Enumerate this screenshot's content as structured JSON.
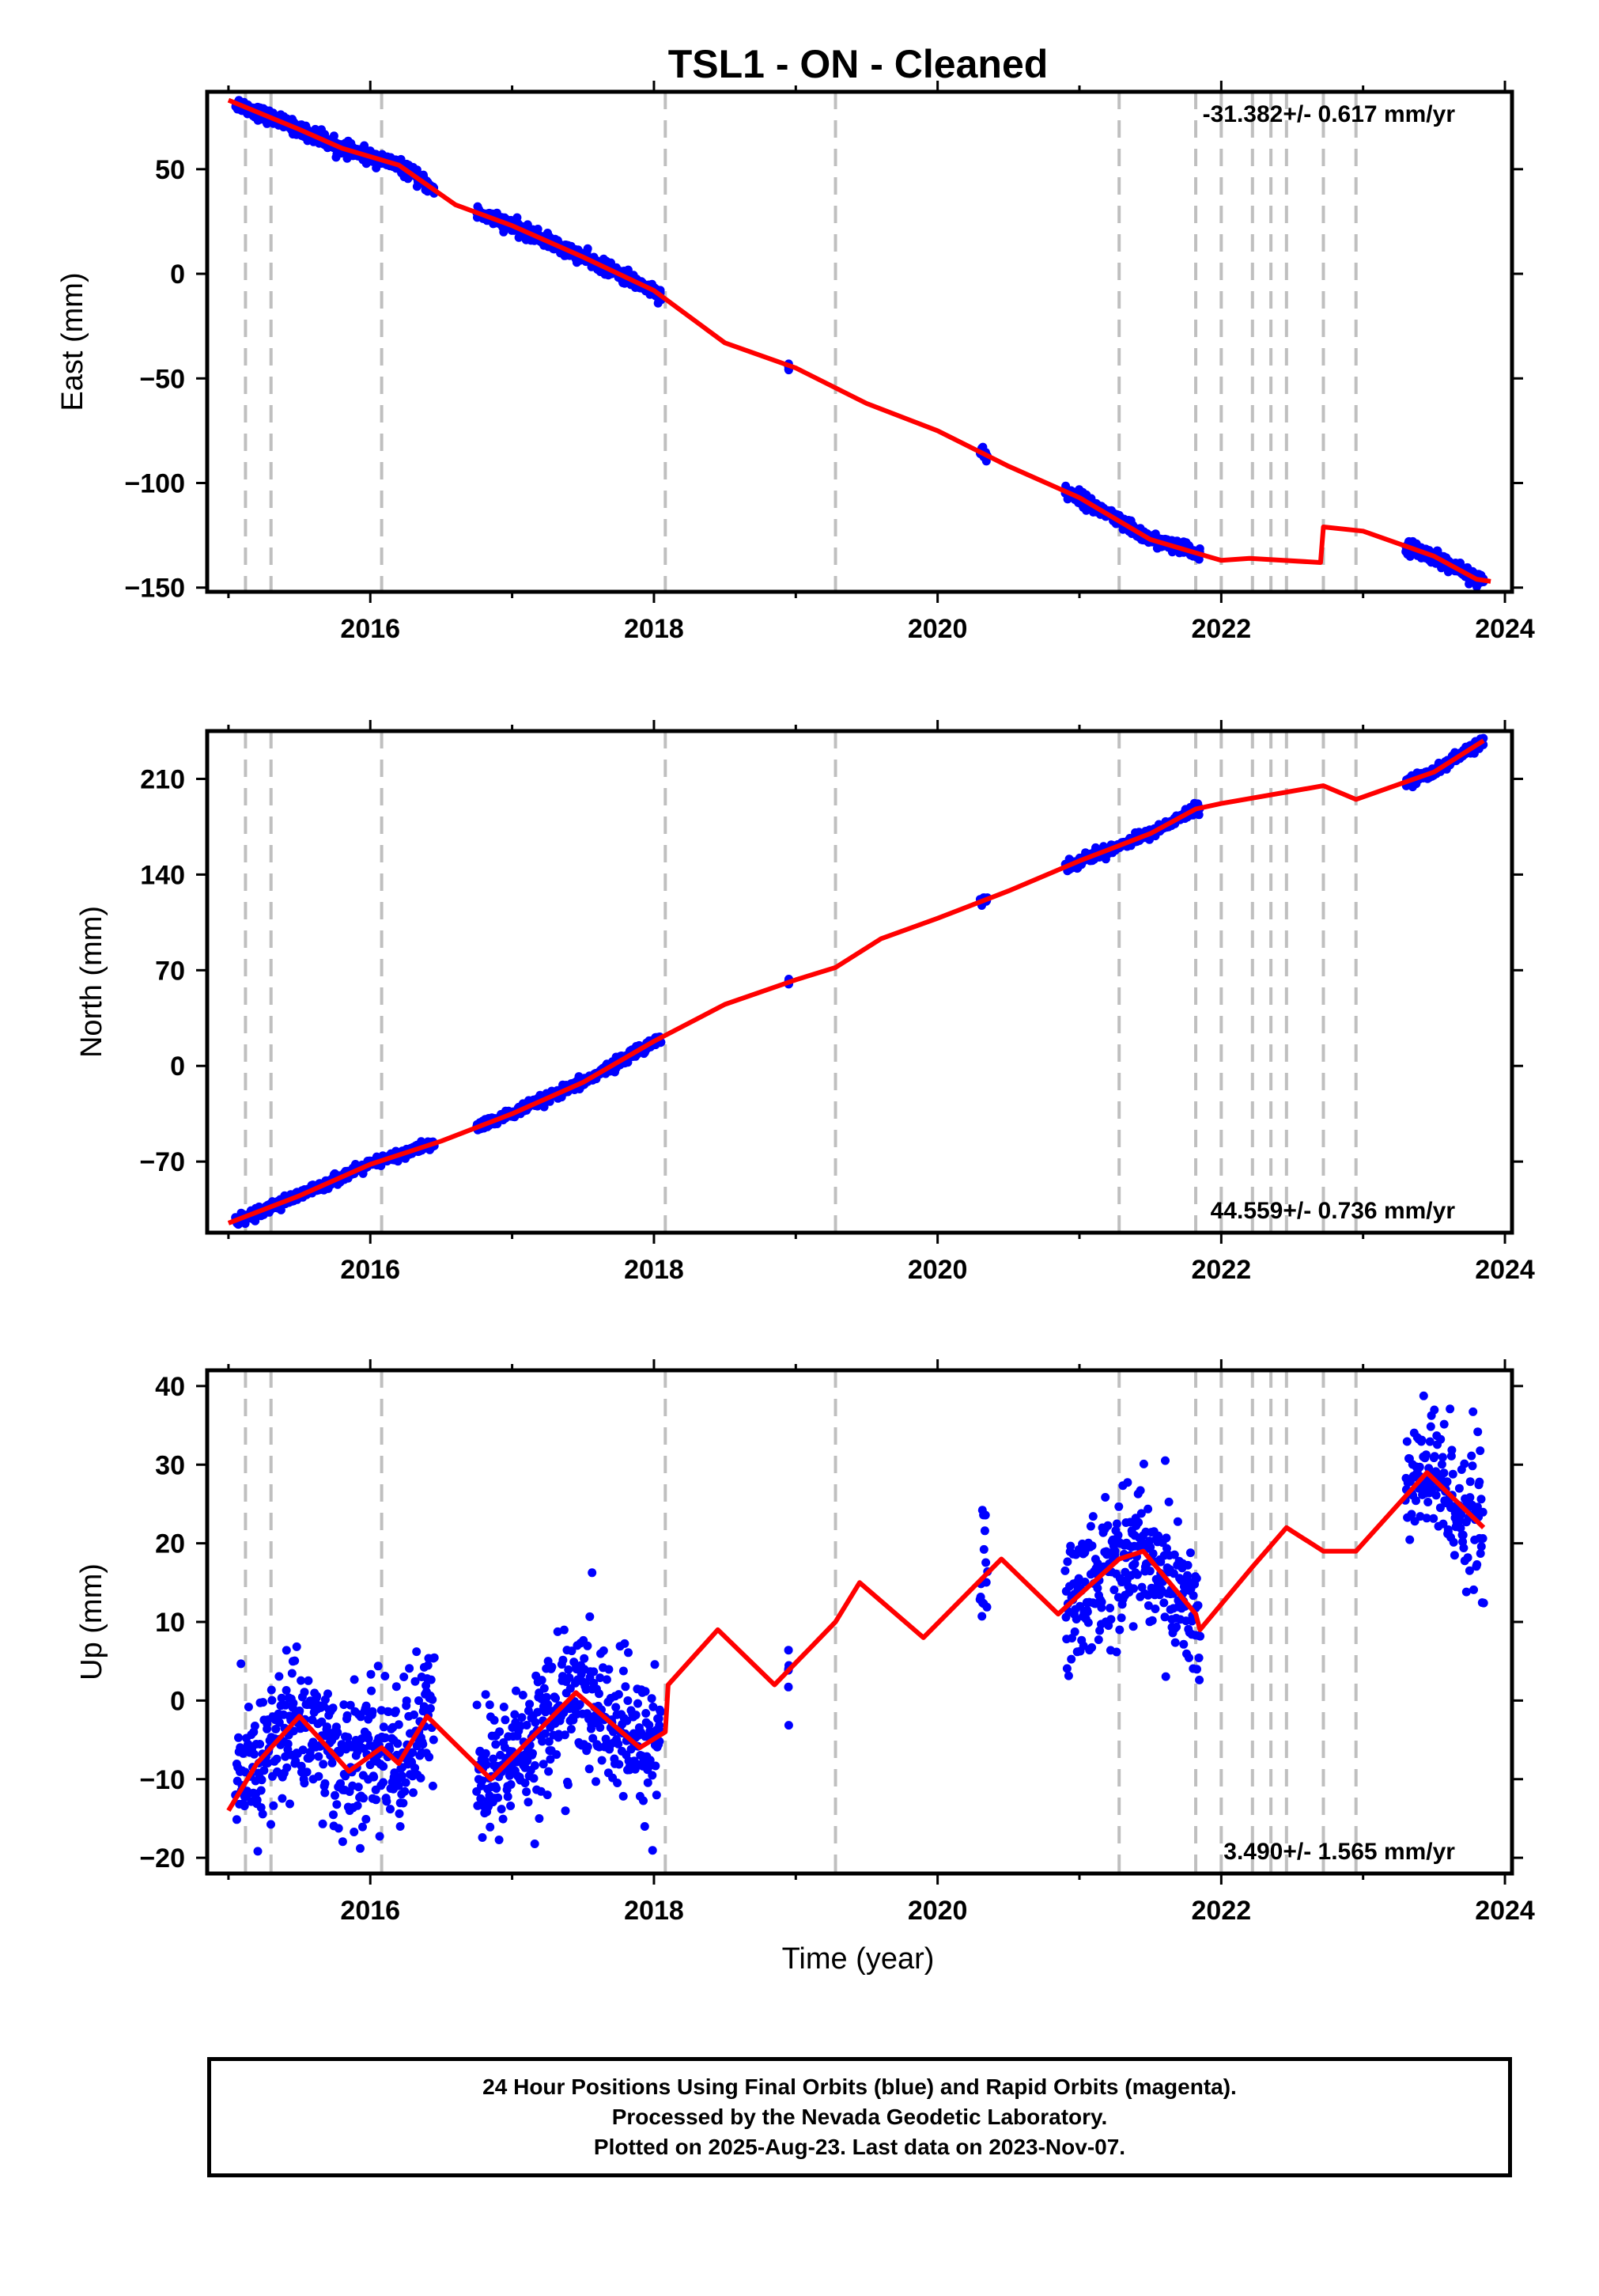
{
  "figure": {
    "title": "TSL1  - ON - Cleaned",
    "xlabel": "Time (year)"
  },
  "colors": {
    "final_orbits": "#0000ff",
    "model_fit": "#ff0000",
    "event_lines": "#bfbfbf",
    "frame": "#000000"
  },
  "event_lines_years": [
    2015.12,
    2015.3,
    2016.08,
    2018.08,
    2019.28,
    2021.28,
    2021.82,
    2022.0,
    2022.22,
    2022.35,
    2022.46,
    2022.72,
    2022.95
  ],
  "chart_data": [
    {
      "type": "scatter",
      "name": "east",
      "ylabel": "East (mm)",
      "xlim": [
        2014.85,
        2024.05
      ],
      "ylim": [
        -152,
        87
      ],
      "xticks": [
        2016,
        2018,
        2020,
        2022,
        2024
      ],
      "yticks": [
        50,
        0,
        -50,
        -100,
        -150
      ],
      "ytick_labels": [
        "50",
        "0",
        "−50",
        "−100",
        "−150"
      ],
      "rate": "-31.382+/- 0.617 mm/yr",
      "rate_pos": "top-right",
      "observations": {
        "segments": [
          [
            2015.05,
            2016.45
          ],
          [
            2016.75,
            2018.05
          ],
          [
            2018.95,
            2018.95
          ],
          [
            2020.3,
            2020.35
          ],
          [
            2020.9,
            2021.85
          ],
          [
            2023.3,
            2023.85
          ]
        ],
        "scatter_mm": 1.6
      },
      "model": {
        "rate_mm_yr": -31.382,
        "knots": [
          [
            2015.0,
            83
          ],
          [
            2015.5,
            69
          ],
          [
            2015.8,
            60
          ],
          [
            2016.2,
            52
          ],
          [
            2016.6,
            33
          ],
          [
            2017.0,
            23
          ],
          [
            2017.5,
            8
          ],
          [
            2018.0,
            -8
          ],
          [
            2018.5,
            -33
          ],
          [
            2019.0,
            -45
          ],
          [
            2019.5,
            -62
          ],
          [
            2020.0,
            -75
          ],
          [
            2020.5,
            -92
          ],
          [
            2021.0,
            -107
          ],
          [
            2021.5,
            -127
          ],
          [
            2022.0,
            -137
          ],
          [
            2022.2,
            -136
          ],
          [
            2022.7,
            -138
          ],
          [
            2022.72,
            -121
          ],
          [
            2023.0,
            -123
          ],
          [
            2023.5,
            -135
          ],
          [
            2023.8,
            -146
          ],
          [
            2023.9,
            -147
          ]
        ],
        "steps": [
          [
            2022.0,
            6
          ],
          [
            2022.22,
            5
          ],
          [
            2022.35,
            5
          ],
          [
            2022.46,
            5
          ],
          [
            2022.72,
            17
          ],
          [
            2022.95,
            5
          ]
        ]
      }
    },
    {
      "type": "scatter",
      "name": "north",
      "ylabel": "North (mm)",
      "xlim": [
        2014.85,
        2024.05
      ],
      "ylim": [
        -122,
        245
      ],
      "xticks": [
        2016,
        2018,
        2020,
        2022,
        2024
      ],
      "yticks": [
        210,
        140,
        70,
        0,
        -70
      ],
      "ytick_labels": [
        "210",
        "140",
        "70",
        "0",
        "−70"
      ],
      "rate": "44.559+/- 0.736 mm/yr",
      "rate_pos": "bottom-right",
      "observations": {
        "segments": [
          [
            2015.05,
            2016.45
          ],
          [
            2016.75,
            2018.05
          ],
          [
            2018.95,
            2018.95
          ],
          [
            2020.3,
            2020.35
          ],
          [
            2020.9,
            2021.85
          ],
          [
            2023.3,
            2023.85
          ]
        ],
        "scatter_mm": 1.8
      },
      "model": {
        "rate_mm_yr": 44.559,
        "knots": [
          [
            2015.0,
            -115
          ],
          [
            2015.5,
            -95
          ],
          [
            2016.0,
            -72
          ],
          [
            2016.5,
            -55
          ],
          [
            2017.0,
            -35
          ],
          [
            2017.5,
            -12
          ],
          [
            2018.0,
            18
          ],
          [
            2018.5,
            45
          ],
          [
            2019.0,
            63
          ],
          [
            2019.28,
            72
          ],
          [
            2019.6,
            93
          ],
          [
            2020.0,
            108
          ],
          [
            2020.5,
            128
          ],
          [
            2021.0,
            150
          ],
          [
            2021.5,
            170
          ],
          [
            2021.82,
            188
          ],
          [
            2022.0,
            192
          ],
          [
            2022.72,
            205
          ],
          [
            2022.95,
            195
          ],
          [
            2023.5,
            215
          ],
          [
            2023.85,
            238
          ]
        ],
        "steps": [
          [
            2022.0,
            3
          ],
          [
            2022.22,
            3
          ],
          [
            2022.35,
            3
          ],
          [
            2022.46,
            3
          ],
          [
            2022.72,
            -15
          ],
          [
            2022.95,
            -6
          ]
        ]
      }
    },
    {
      "type": "scatter",
      "name": "up",
      "ylabel": "Up (mm)",
      "xlim": [
        2014.85,
        2024.05
      ],
      "ylim": [
        -22,
        42
      ],
      "xticks": [
        2016,
        2018,
        2020,
        2022,
        2024
      ],
      "yticks": [
        40,
        30,
        20,
        10,
        0,
        -10,
        -20
      ],
      "ytick_labels": [
        "40",
        "30",
        "20",
        "10",
        "0",
        "−10",
        "−20"
      ],
      "rate": "3.490+/- 1.565 mm/yr",
      "rate_pos": "bottom-right",
      "observations": {
        "segments": [
          [
            2015.05,
            2016.45
          ],
          [
            2016.75,
            2018.05
          ],
          [
            2018.95,
            2018.95
          ],
          [
            2020.3,
            2020.35
          ],
          [
            2020.9,
            2021.85
          ],
          [
            2023.3,
            2023.85
          ]
        ],
        "scatter_mm": 4.5
      },
      "model": {
        "rate_mm_yr": 3.49,
        "annual_amplitude_mm": 4.5,
        "knots": [
          [
            2015.0,
            -14
          ],
          [
            2015.2,
            -8
          ],
          [
            2015.5,
            -2
          ],
          [
            2015.85,
            -9
          ],
          [
            2016.08,
            -6
          ],
          [
            2016.2,
            -8
          ],
          [
            2016.4,
            -2
          ],
          [
            2016.85,
            -10
          ],
          [
            2017.45,
            1
          ],
          [
            2017.9,
            -6
          ],
          [
            2018.08,
            -4
          ],
          [
            2018.1,
            2
          ],
          [
            2018.45,
            9
          ],
          [
            2018.85,
            2
          ],
          [
            2019.28,
            10
          ],
          [
            2019.45,
            15
          ],
          [
            2019.9,
            8
          ],
          [
            2020.45,
            18
          ],
          [
            2020.85,
            11
          ],
          [
            2021.28,
            18
          ],
          [
            2021.45,
            19
          ],
          [
            2021.82,
            11
          ],
          [
            2021.85,
            9
          ],
          [
            2022.22,
            17
          ],
          [
            2022.46,
            22
          ],
          [
            2022.72,
            19
          ],
          [
            2022.95,
            19
          ],
          [
            2023.45,
            29
          ],
          [
            2023.85,
            22
          ]
        ]
      }
    }
  ],
  "footer": {
    "line1": "24 Hour Positions Using Final Orbits (blue) and Rapid Orbits (magenta).",
    "line2": "Processed by the Nevada Geodetic Laboratory.",
    "line3": "Plotted on 2025-Aug-23. Last data on 2023-Nov-07."
  }
}
